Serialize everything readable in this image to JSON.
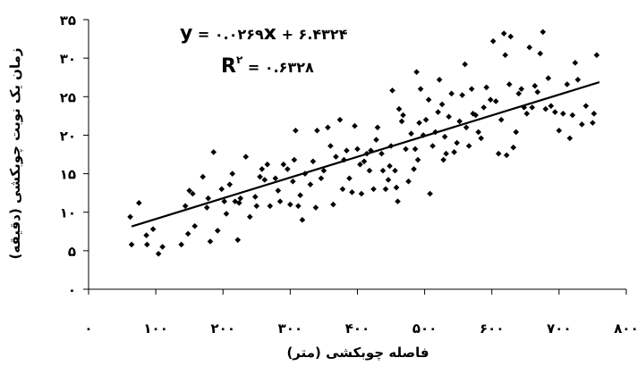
{
  "chart_data": {
    "type": "scatter",
    "xlabel": "فاصله چوبکشی (متر)",
    "ylabel": "زمان یک نوبت چوبکشی (دقیقه)",
    "xlim": [
      0,
      800
    ],
    "ylim": [
      0,
      35
    ],
    "x_ticks": [
      0,
      100,
      200,
      300,
      400,
      500,
      600,
      700,
      800
    ],
    "y_ticks": [
      0,
      5,
      10,
      15,
      20,
      25,
      30,
      35
    ],
    "x_tick_labels": [
      "۰",
      "۱۰۰",
      "۲۰۰",
      "۳۰۰",
      "۴۰۰",
      "۵۰۰",
      "۶۰۰",
      "۷۰۰",
      "۸۰۰"
    ],
    "y_tick_labels": [
      "۰",
      "۵",
      "۱۰",
      "۱۵",
      "۲۰",
      "۲۵",
      "۳۰",
      "۳۵"
    ],
    "grid": false,
    "legend": "none",
    "marker": "diamond",
    "color": "#000000",
    "equation": {
      "lhs": "y",
      "eq1": " = ۰.۰۲۶۹",
      "xvar": "x",
      "eq2": " + ۶.۴۳۲۴",
      "r_base": "R",
      "r_sup": "۲",
      "r_eq": " = ۰.۶۳۲۸"
    },
    "trendline": {
      "slope": 0.0269,
      "intercept": 6.4324,
      "x_range": [
        64,
        760
      ]
    },
    "points": [
      [
        62,
        9.4
      ],
      [
        64,
        5.8
      ],
      [
        75,
        11.2
      ],
      [
        86,
        7
      ],
      [
        87,
        5.8
      ],
      [
        96,
        7.8
      ],
      [
        104,
        4.6
      ],
      [
        110,
        5.5
      ],
      [
        138,
        5.8
      ],
      [
        144,
        10.8
      ],
      [
        148,
        7.2
      ],
      [
        150,
        12.8
      ],
      [
        155,
        12.4
      ],
      [
        158,
        8.2
      ],
      [
        170,
        14.6
      ],
      [
        176,
        10.6
      ],
      [
        178,
        11.8
      ],
      [
        181,
        6.2
      ],
      [
        186,
        17.8
      ],
      [
        192,
        7.6
      ],
      [
        198,
        13
      ],
      [
        202,
        11.4
      ],
      [
        205,
        9.8
      ],
      [
        210,
        13.6
      ],
      [
        214,
        15
      ],
      [
        218,
        11.4
      ],
      [
        222,
        6.4
      ],
      [
        224,
        11.2
      ],
      [
        226,
        11.8
      ],
      [
        234,
        17.2
      ],
      [
        240,
        9.4
      ],
      [
        248,
        12
      ],
      [
        250,
        10.8
      ],
      [
        255,
        14.6
      ],
      [
        258,
        15.6
      ],
      [
        262,
        14.2
      ],
      [
        266,
        16.2
      ],
      [
        270,
        10.8
      ],
      [
        278,
        14.4
      ],
      [
        282,
        12.8
      ],
      [
        285,
        11.4
      ],
      [
        290,
        16.2
      ],
      [
        296,
        15.6
      ],
      [
        300,
        11
      ],
      [
        304,
        14
      ],
      [
        306,
        16.8
      ],
      [
        308,
        20.6
      ],
      [
        312,
        10.8
      ],
      [
        315,
        12.2
      ],
      [
        318,
        9
      ],
      [
        322,
        15
      ],
      [
        330,
        13.6
      ],
      [
        334,
        16.6
      ],
      [
        338,
        10.6
      ],
      [
        340,
        20.6
      ],
      [
        346,
        14.4
      ],
      [
        350,
        15.4
      ],
      [
        356,
        21
      ],
      [
        360,
        18.6
      ],
      [
        364,
        11
      ],
      [
        368,
        17.2
      ],
      [
        374,
        22
      ],
      [
        378,
        13
      ],
      [
        380,
        16.8
      ],
      [
        384,
        18
      ],
      [
        388,
        14.4
      ],
      [
        392,
        12.6
      ],
      [
        396,
        21.2
      ],
      [
        400,
        18.2
      ],
      [
        404,
        16.2
      ],
      [
        406,
        12.4
      ],
      [
        410,
        16.6
      ],
      [
        414,
        17.6
      ],
      [
        418,
        15.4
      ],
      [
        420,
        18
      ],
      [
        424,
        13
      ],
      [
        428,
        19.4
      ],
      [
        430,
        21
      ],
      [
        436,
        17.6
      ],
      [
        438,
        15.4
      ],
      [
        442,
        13
      ],
      [
        446,
        14.2
      ],
      [
        448,
        16
      ],
      [
        450,
        18.6
      ],
      [
        452,
        25.8
      ],
      [
        456,
        15.4
      ],
      [
        458,
        13.2
      ],
      [
        460,
        11.4
      ],
      [
        462,
        23.4
      ],
      [
        466,
        21.8
      ],
      [
        468,
        22.6
      ],
      [
        472,
        18.2
      ],
      [
        476,
        14
      ],
      [
        480,
        20.2
      ],
      [
        484,
        15.6
      ],
      [
        486,
        18.2
      ],
      [
        488,
        28.2
      ],
      [
        490,
        16.8
      ],
      [
        492,
        21.6
      ],
      [
        494,
        26
      ],
      [
        498,
        20
      ],
      [
        502,
        22
      ],
      [
        506,
        24.6
      ],
      [
        508,
        12.4
      ],
      [
        512,
        18.6
      ],
      [
        516,
        20.4
      ],
      [
        520,
        23
      ],
      [
        522,
        27.2
      ],
      [
        526,
        24
      ],
      [
        528,
        16.8
      ],
      [
        530,
        19.8
      ],
      [
        532,
        17.6
      ],
      [
        536,
        22.4
      ],
      [
        540,
        25.4
      ],
      [
        544,
        17.8
      ],
      [
        548,
        19
      ],
      [
        552,
        21.8
      ],
      [
        556,
        25.2
      ],
      [
        560,
        29.2
      ],
      [
        562,
        21
      ],
      [
        566,
        18.6
      ],
      [
        570,
        26
      ],
      [
        572,
        22.8
      ],
      [
        576,
        22.6
      ],
      [
        580,
        20.4
      ],
      [
        584,
        19.6
      ],
      [
        588,
        23.6
      ],
      [
        592,
        26.2
      ],
      [
        598,
        24.6
      ],
      [
        602,
        32.2
      ],
      [
        606,
        24.4
      ],
      [
        610,
        17.6
      ],
      [
        614,
        22
      ],
      [
        618,
        33.2
      ],
      [
        620,
        30.4
      ],
      [
        622,
        17.4
      ],
      [
        626,
        26.6
      ],
      [
        628,
        32.8
      ],
      [
        632,
        18.4
      ],
      [
        636,
        20.4
      ],
      [
        640,
        25.4
      ],
      [
        644,
        26
      ],
      [
        648,
        23.6
      ],
      [
        652,
        22.8
      ],
      [
        656,
        31.4
      ],
      [
        660,
        23.6
      ],
      [
        664,
        26.4
      ],
      [
        668,
        25.6
      ],
      [
        672,
        30.6
      ],
      [
        676,
        33.4
      ],
      [
        680,
        23.4
      ],
      [
        684,
        27.4
      ],
      [
        688,
        23.8
      ],
      [
        694,
        23
      ],
      [
        700,
        20.6
      ],
      [
        706,
        22.8
      ],
      [
        712,
        26.6
      ],
      [
        716,
        19.6
      ],
      [
        720,
        22.6
      ],
      [
        724,
        29.4
      ],
      [
        728,
        27.2
      ],
      [
        734,
        21.4
      ],
      [
        740,
        23.8
      ],
      [
        750,
        21.6
      ],
      [
        752,
        22.8
      ],
      [
        756,
        30.4
      ]
    ]
  }
}
